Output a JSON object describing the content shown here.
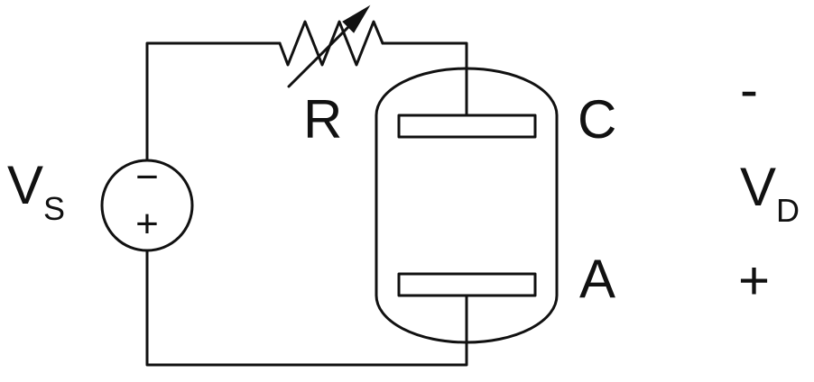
{
  "labels": {
    "source_main": "V",
    "source_sub": "S",
    "resistor": "R",
    "cathode": "C",
    "anode": "A",
    "voltage_main": "V",
    "voltage_sub": "D",
    "voltage_minus": "-",
    "voltage_plus": "+",
    "source_minus": "−",
    "source_plus": "+"
  },
  "colors": {
    "ink": "#111111",
    "background": "#ffffff"
  }
}
